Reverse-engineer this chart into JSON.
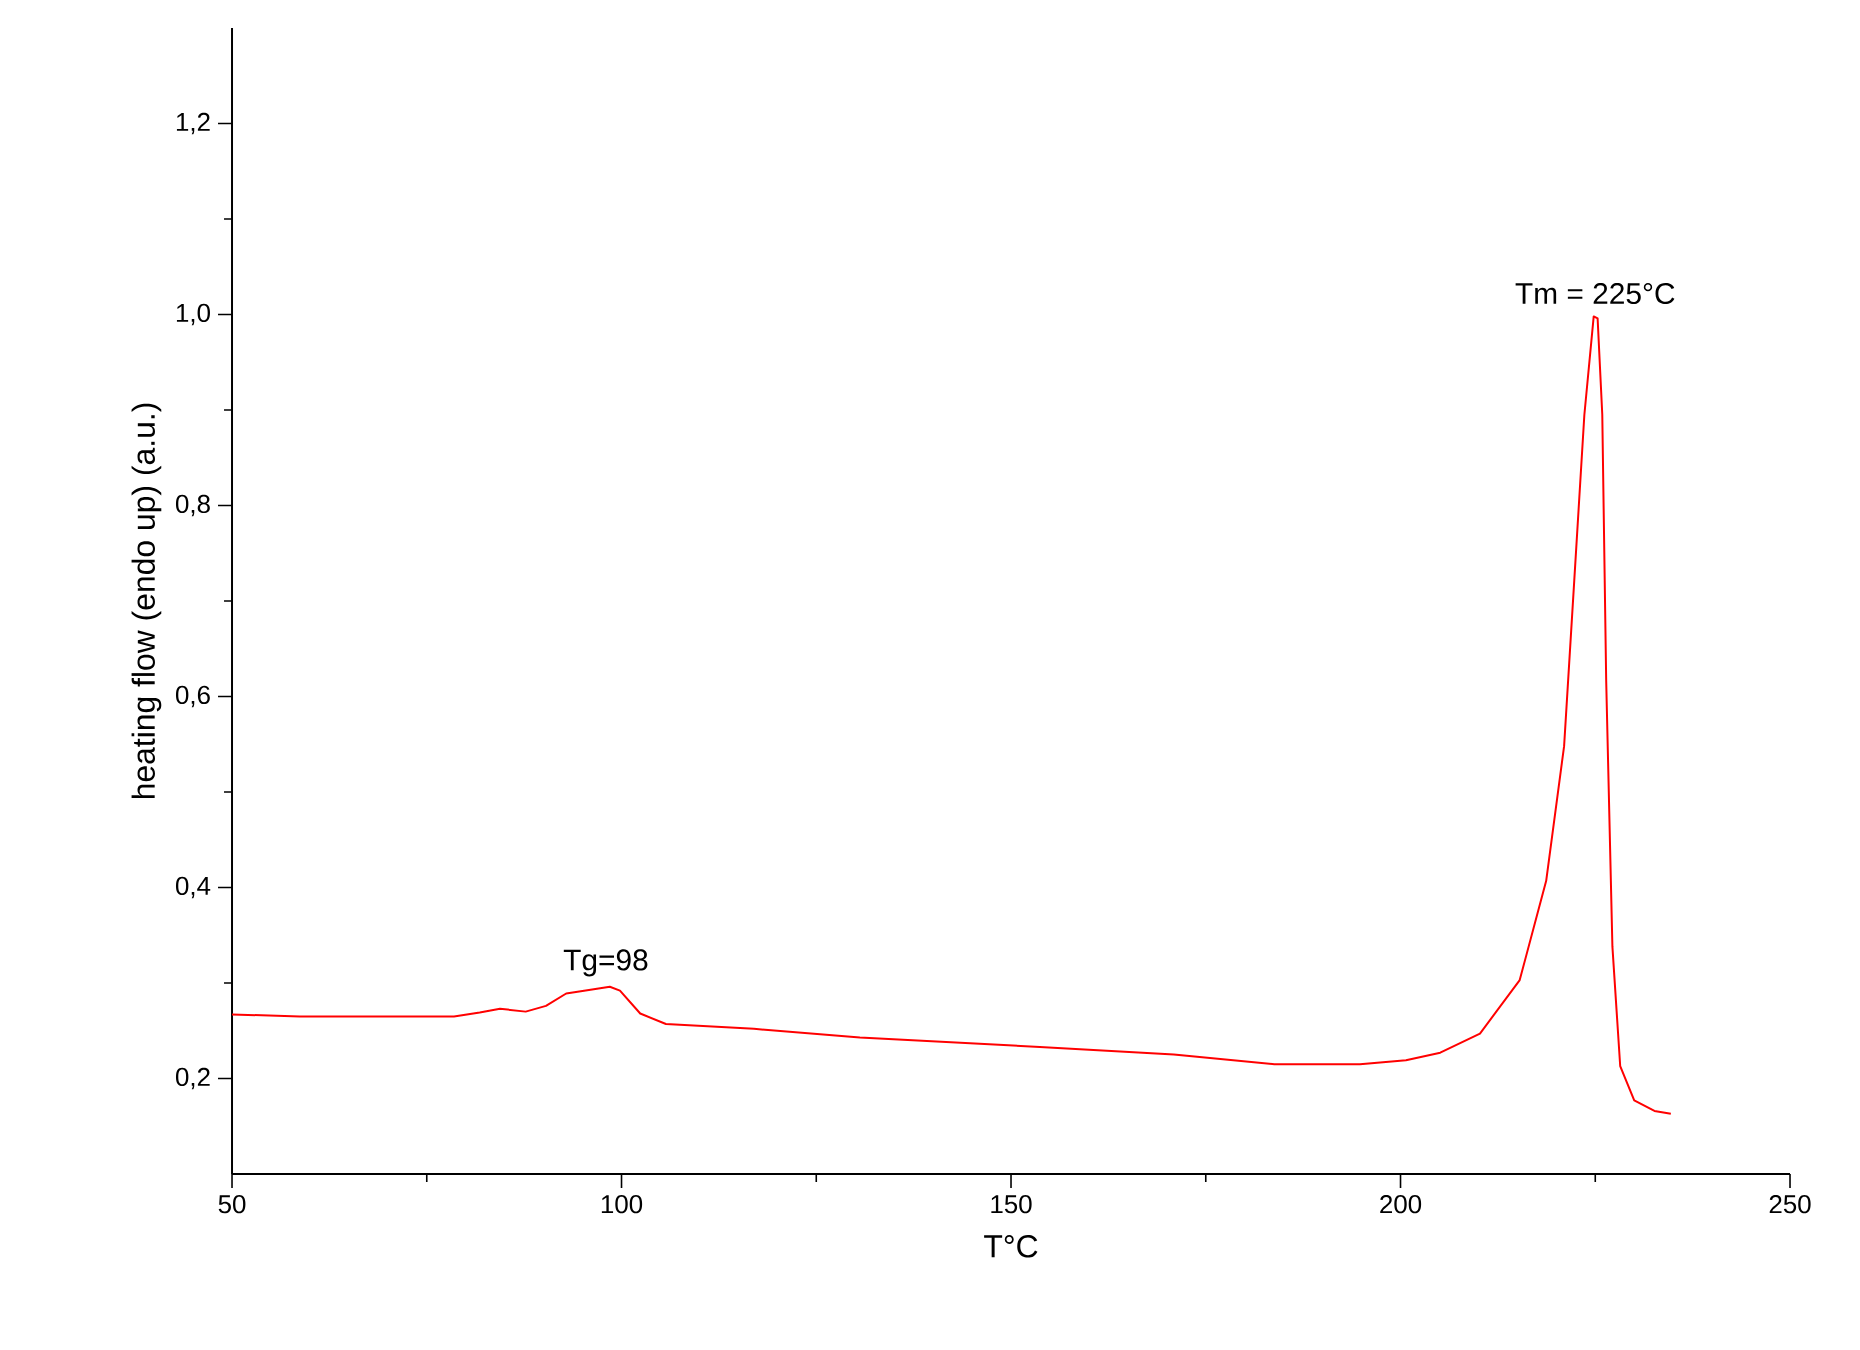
{
  "chart_data": {
    "type": "line",
    "xlabel": "T°C",
    "ylabel": "heating flow (endo up) (a.u.)",
    "xlim": [
      50,
      250
    ],
    "xticks": [
      50,
      100,
      150,
      200,
      250
    ],
    "ylim": [
      0.1,
      1.3
    ],
    "yticks": [
      {
        "value": 0.2,
        "label": "0,2"
      },
      {
        "value": 0.4,
        "label": "0,4"
      },
      {
        "value": 0.6,
        "label": "0,6"
      },
      {
        "value": 0.8,
        "label": "0,8"
      },
      {
        "value": 1.0,
        "label": "1,0"
      },
      {
        "value": 1.2,
        "label": "1,2"
      }
    ],
    "marker": "none",
    "line_style": "solid",
    "series": [
      {
        "color": "#ff0000",
        "x": [
          50.0,
          58.7,
          78.5,
          81.8,
          84.4,
          87.7,
          90.3,
          92.9,
          95.4,
          98.5,
          99.8,
          102.4,
          105.7,
          117.0,
          130.6,
          153.7,
          170.9,
          183.8,
          194.8,
          200.7,
          205.1,
          210.2,
          215.3,
          218.7,
          221.0,
          222.3,
          223.6,
          224.8,
          225.3,
          225.9,
          226.4,
          227.2,
          228.2,
          230.0,
          232.6,
          234.7
        ],
        "values": [
          0.267,
          0.265,
          0.265,
          0.269,
          0.273,
          0.27,
          0.276,
          0.289,
          0.292,
          0.296,
          0.292,
          0.268,
          0.257,
          0.252,
          0.243,
          0.233,
          0.225,
          0.215,
          0.215,
          0.219,
          0.227,
          0.247,
          0.303,
          0.407,
          0.548,
          0.721,
          0.895,
          0.998,
          0.996,
          0.895,
          0.617,
          0.338,
          0.213,
          0.177,
          0.166,
          0.163
        ]
      }
    ],
    "annotations": [
      {
        "text": "Tg=98",
        "x": 98,
        "y": 0.296
      },
      {
        "text": "Tm = 225°C",
        "x": 225,
        "y": 1.0
      }
    ]
  }
}
